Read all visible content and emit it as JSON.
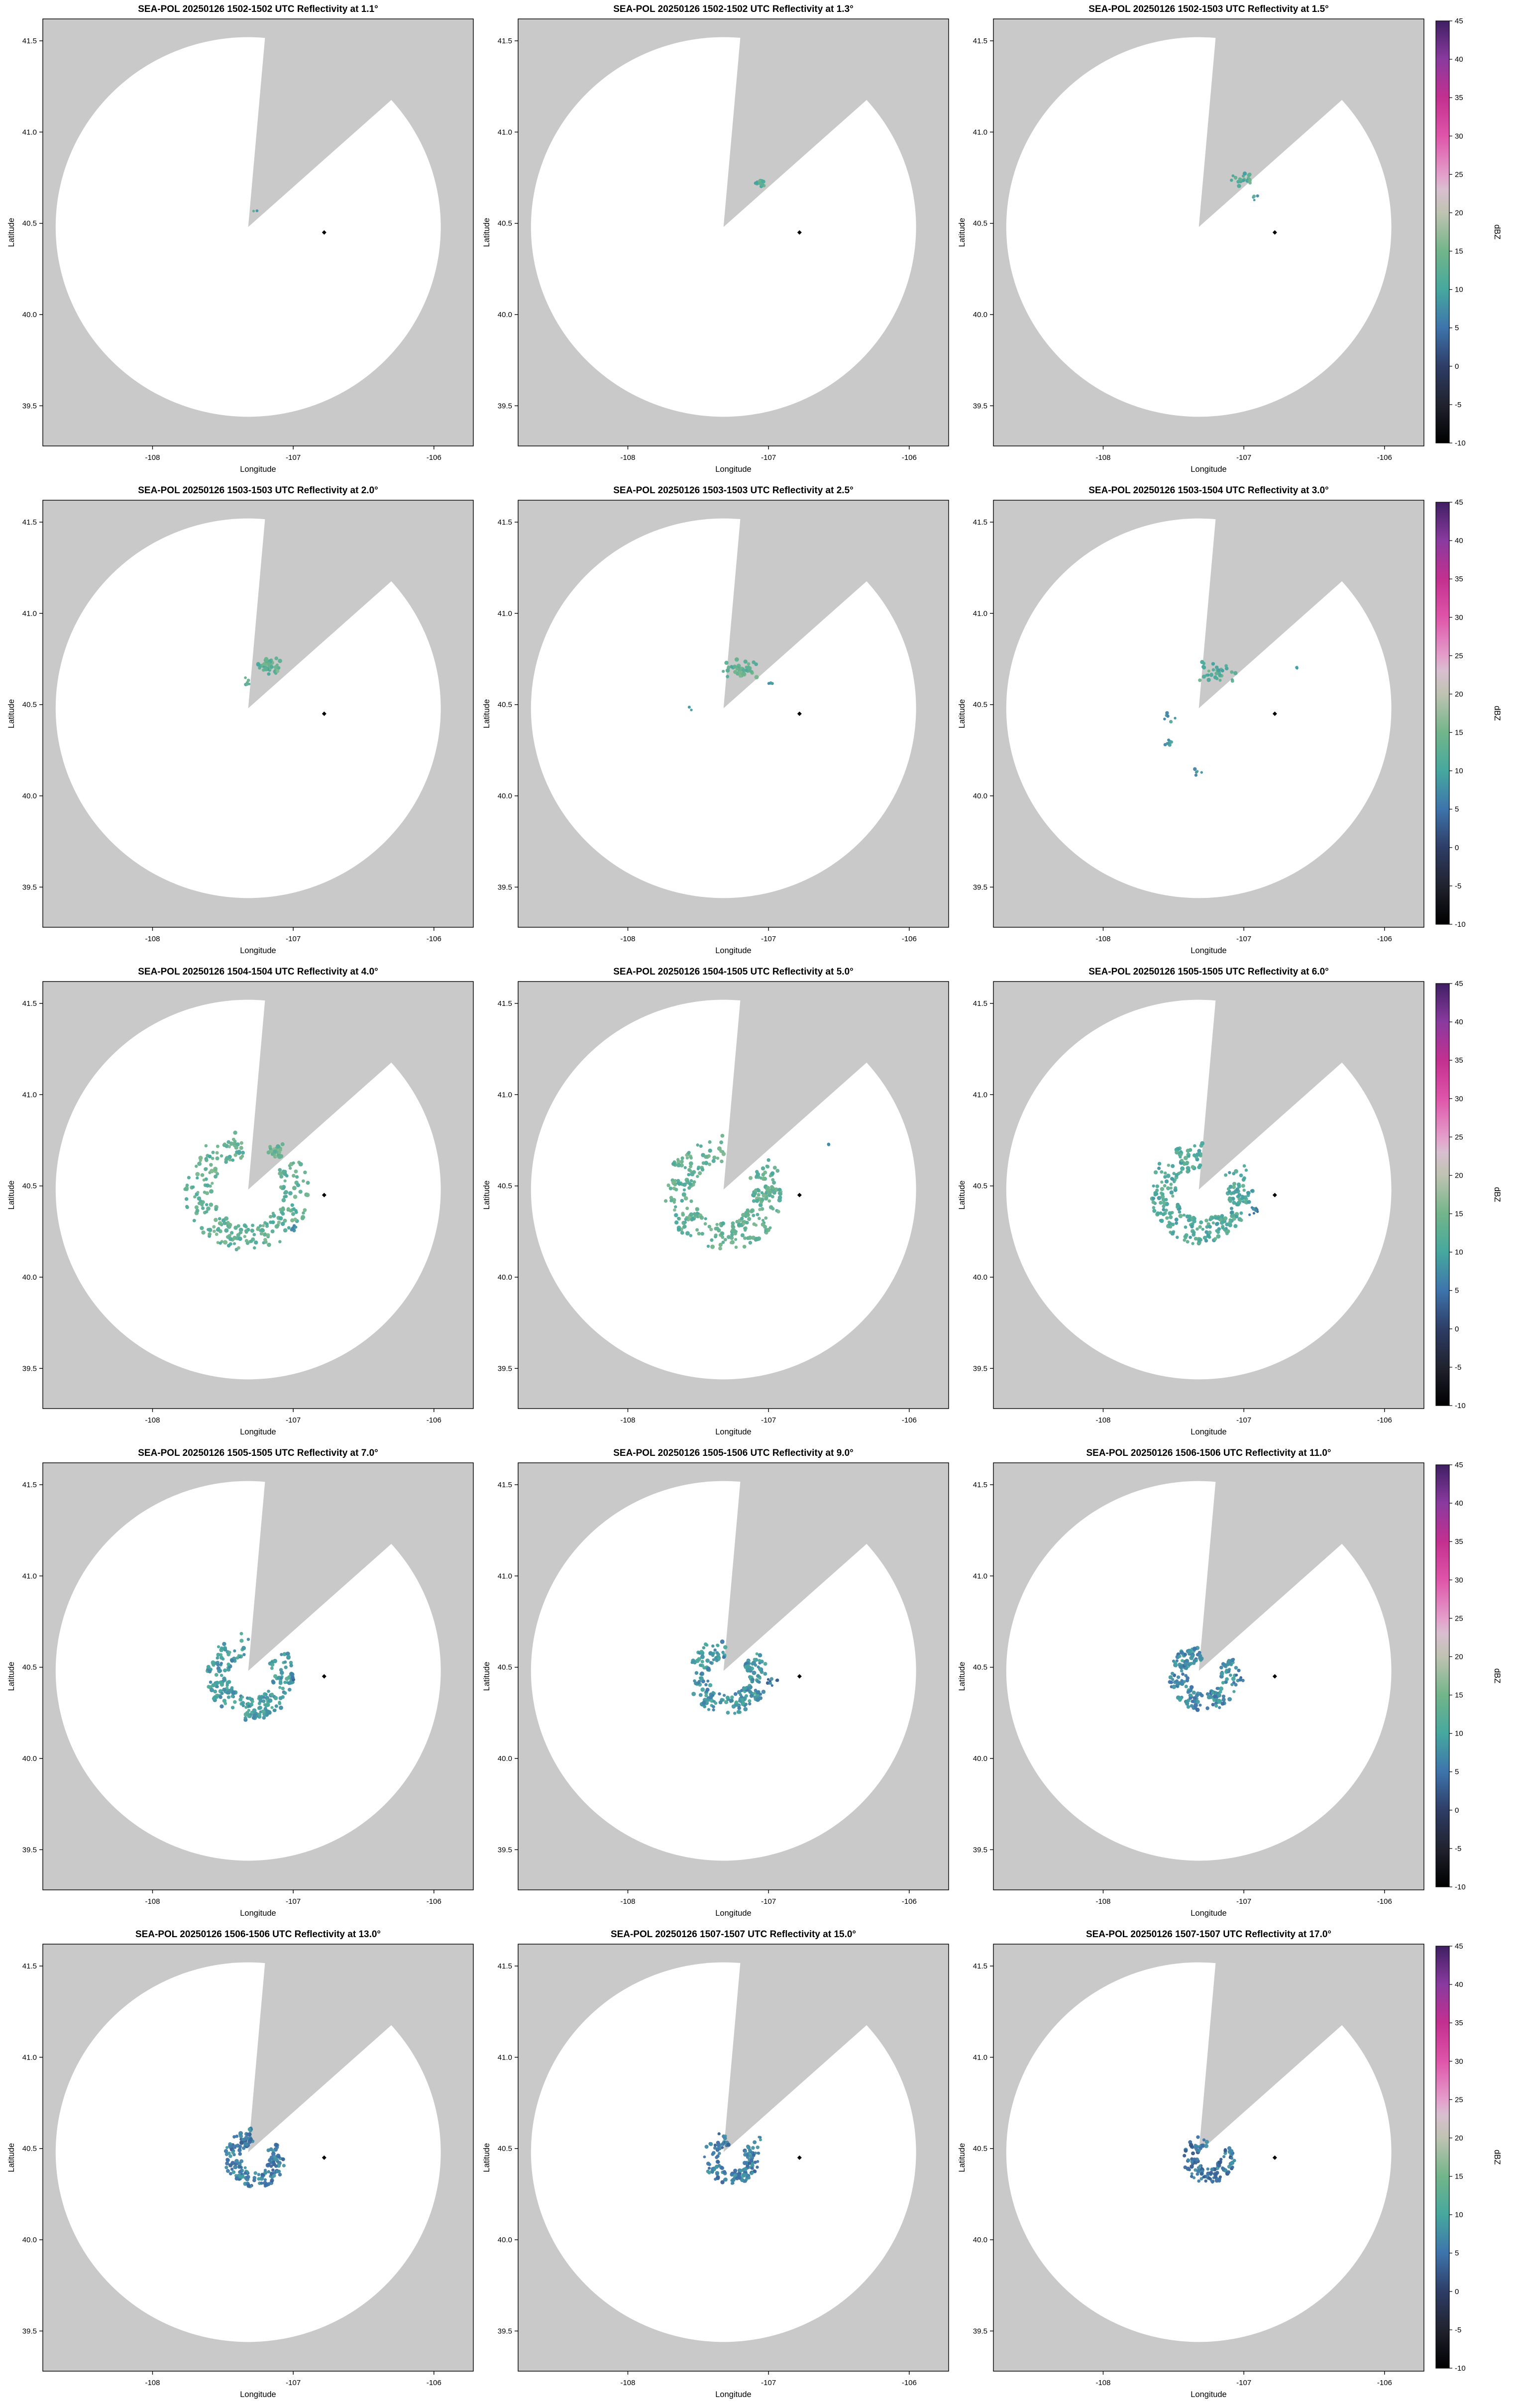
{
  "figure_name": "SEA-POL radar reflectivity multi-elevation PPI grid",
  "colors": {
    "page_background": "#ffffff",
    "map_outside": "#c9c9c9",
    "range_inside": "#ffffff",
    "axis": "#000000",
    "site_marker": "#000000"
  },
  "axes": {
    "xlabel": "Longitude",
    "ylabel": "Latitude",
    "xlim": [
      -108.78,
      -105.72
    ],
    "ylim": [
      39.28,
      41.62
    ],
    "xticks": [
      {
        "v": -108,
        "label": "-108"
      },
      {
        "v": -107,
        "label": "-107"
      },
      {
        "v": -106,
        "label": "-106"
      }
    ],
    "yticks": [
      {
        "v": 39.5,
        "label": "39.5"
      },
      {
        "v": 40.0,
        "label": "40.0"
      },
      {
        "v": 40.5,
        "label": "40.5"
      },
      {
        "v": 41.0,
        "label": "41.0"
      },
      {
        "v": 41.5,
        "label": "41.5"
      }
    ]
  },
  "radar": {
    "center_lon": -107.32,
    "center_lat": 40.48,
    "range_radius_deg_lat": 1.04,
    "lon_stretch": 1.316,
    "blocked_sector_az_deg": [
      5,
      48
    ],
    "site_marker": {
      "lon": -106.78,
      "lat": 40.45
    }
  },
  "colorbar": {
    "label": "dBZ",
    "min": -10,
    "max": 45,
    "ticks": [
      45,
      40,
      35,
      30,
      25,
      20,
      15,
      10,
      5,
      0,
      -5,
      -10
    ],
    "stops": [
      {
        "v": -10,
        "c": "#000000"
      },
      {
        "v": -5,
        "c": "#20222e"
      },
      {
        "v": 0,
        "c": "#2e3d66"
      },
      {
        "v": 5,
        "c": "#3e74ac"
      },
      {
        "v": 10,
        "c": "#46a89e"
      },
      {
        "v": 15,
        "c": "#72b58a"
      },
      {
        "v": 20,
        "c": "#bfc3b2"
      },
      {
        "v": 23,
        "c": "#d9bfd0"
      },
      {
        "v": 25,
        "c": "#e49ecb"
      },
      {
        "v": 30,
        "c": "#df55a9"
      },
      {
        "v": 35,
        "c": "#c3308f"
      },
      {
        "v": 40,
        "c": "#8a3a9f"
      },
      {
        "v": 45,
        "c": "#3f1f63"
      }
    ]
  },
  "chart_data": [
    {
      "type": "scatter",
      "title": "SEA-POL 20250126 1502-1502 UTC Reflectivity at 1.1°",
      "date": "20250126",
      "time_utc": "1502-1502",
      "elevation_deg": 1.1,
      "echoes": [
        {
          "kind": "blob",
          "cx": -107.27,
          "cy": 40.56,
          "rx": 0.02,
          "ry": 0.015,
          "n": 2,
          "dbz": 11,
          "size": 3
        }
      ]
    },
    {
      "type": "scatter",
      "title": "SEA-POL 20250126 1502-1502 UTC Reflectivity at 1.3°",
      "date": "20250126",
      "time_utc": "1502-1502",
      "elevation_deg": 1.3,
      "echoes": [
        {
          "kind": "blob",
          "cx": -107.06,
          "cy": 40.72,
          "rx": 0.05,
          "ry": 0.025,
          "n": 12,
          "dbz": 12,
          "size": 3.5
        }
      ]
    },
    {
      "type": "scatter",
      "title": "SEA-POL 20250126 1502-1503 UTC Reflectivity at 1.5°",
      "date": "20250126",
      "time_utc": "1502-1503",
      "elevation_deg": 1.5,
      "echoes": [
        {
          "kind": "blob",
          "cx": -107.02,
          "cy": 40.74,
          "rx": 0.09,
          "ry": 0.04,
          "n": 22,
          "dbz": 12,
          "size": 3.5
        },
        {
          "kind": "blob",
          "cx": -106.93,
          "cy": 40.64,
          "rx": 0.03,
          "ry": 0.02,
          "n": 4,
          "dbz": 10,
          "size": 3
        }
      ]
    },
    {
      "type": "scatter",
      "title": "SEA-POL 20250126 1503-1503 UTC Reflectivity at 2.0°",
      "date": "20250126",
      "time_utc": "1503-1503",
      "elevation_deg": 2.0,
      "echoes": [
        {
          "kind": "blob",
          "cx": -107.17,
          "cy": 40.71,
          "rx": 0.11,
          "ry": 0.055,
          "n": 40,
          "dbz": 13,
          "size": 3.8
        },
        {
          "kind": "blob",
          "cx": -107.33,
          "cy": 40.63,
          "rx": 0.03,
          "ry": 0.03,
          "n": 6,
          "dbz": 12,
          "size": 3.2
        }
      ]
    },
    {
      "type": "scatter",
      "title": "SEA-POL 20250126 1503-1503 UTC Reflectivity at 2.5°",
      "date": "20250126",
      "time_utc": "1503-1503",
      "elevation_deg": 2.5,
      "echoes": [
        {
          "kind": "blob",
          "cx": -107.2,
          "cy": 40.69,
          "rx": 0.14,
          "ry": 0.06,
          "n": 45,
          "dbz": 13,
          "size": 3.8
        },
        {
          "kind": "blob",
          "cx": -107.56,
          "cy": 40.48,
          "rx": 0.015,
          "ry": 0.012,
          "n": 2,
          "dbz": 10,
          "size": 3
        },
        {
          "kind": "blob",
          "cx": -106.98,
          "cy": 40.62,
          "rx": 0.02,
          "ry": 0.015,
          "n": 3,
          "dbz": 10,
          "size": 3
        }
      ]
    },
    {
      "type": "scatter",
      "title": "SEA-POL 20250126 1503-1504 UTC Reflectivity at 3.0°",
      "date": "20250126",
      "time_utc": "1503-1504",
      "elevation_deg": 3.0,
      "echoes": [
        {
          "kind": "blob",
          "cx": -107.18,
          "cy": 40.68,
          "rx": 0.16,
          "ry": 0.07,
          "n": 35,
          "dbz": 12,
          "size": 3.6
        },
        {
          "kind": "blob",
          "cx": -107.52,
          "cy": 40.42,
          "rx": 0.05,
          "ry": 0.035,
          "n": 6,
          "dbz": 9,
          "size": 3.2
        },
        {
          "kind": "blob",
          "cx": -107.55,
          "cy": 40.28,
          "rx": 0.06,
          "ry": 0.04,
          "n": 7,
          "dbz": 9,
          "size": 3.2
        },
        {
          "kind": "blob",
          "cx": -107.33,
          "cy": 40.13,
          "rx": 0.05,
          "ry": 0.03,
          "n": 5,
          "dbz": 9,
          "size": 3.2
        },
        {
          "kind": "blob",
          "cx": -106.62,
          "cy": 40.7,
          "rx": 0.02,
          "ry": 0.015,
          "n": 2,
          "dbz": 9,
          "size": 3
        }
      ]
    },
    {
      "type": "scatter",
      "title": "SEA-POL 20250126 1504-1504 UTC Reflectivity at 4.0°",
      "date": "20250126",
      "time_utc": "1504-1504",
      "elevation_deg": 4.0,
      "echoes": [
        {
          "kind": "arc",
          "cx": -107.33,
          "cy": 40.47,
          "r": 0.26,
          "w": 0.15,
          "az0": 55,
          "az1": 355,
          "n": 260,
          "dbz": 13,
          "size": 3.8
        },
        {
          "kind": "blob",
          "cx": -107.12,
          "cy": 40.69,
          "rx": 0.06,
          "ry": 0.04,
          "n": 25,
          "dbz": 14,
          "size": 3.8
        },
        {
          "kind": "blob",
          "cx": -107.0,
          "cy": 40.27,
          "rx": 0.04,
          "ry": 0.03,
          "n": 5,
          "dbz": 9,
          "size": 3.2
        }
      ]
    },
    {
      "type": "scatter",
      "title": "SEA-POL 20250126 1504-1505 UTC Reflectivity at 5.0°",
      "date": "20250126",
      "time_utc": "1504-1505",
      "elevation_deg": 5.0,
      "echoes": [
        {
          "kind": "arc",
          "cx": -107.32,
          "cy": 40.46,
          "r": 0.24,
          "w": 0.16,
          "az0": 52,
          "az1": 360,
          "n": 300,
          "dbz": 13,
          "size": 3.8
        },
        {
          "kind": "blob",
          "cx": -106.58,
          "cy": 40.73,
          "rx": 0.02,
          "ry": 0.015,
          "n": 2,
          "dbz": 9,
          "size": 3
        }
      ]
    },
    {
      "type": "scatter",
      "title": "SEA-POL 20250126 1505-1505 UTC Reflectivity at 6.0°",
      "date": "20250126",
      "time_utc": "1505-1505",
      "elevation_deg": 6.0,
      "echoes": [
        {
          "kind": "arc",
          "cx": -107.3,
          "cy": 40.46,
          "r": 0.21,
          "w": 0.14,
          "az0": 50,
          "az1": 360,
          "n": 280,
          "dbz": 11,
          "size": 3.8
        },
        {
          "kind": "blob",
          "cx": -106.92,
          "cy": 40.36,
          "rx": 0.05,
          "ry": 0.03,
          "n": 8,
          "dbz": 6,
          "size": 3.2
        }
      ]
    },
    {
      "type": "scatter",
      "title": "SEA-POL 20250126 1505-1505 UTC Reflectivity at 7.0°",
      "date": "20250126",
      "time_utc": "1505-1505",
      "elevation_deg": 7.0,
      "echoes": [
        {
          "kind": "arc",
          "cx": -107.3,
          "cy": 40.45,
          "r": 0.18,
          "w": 0.12,
          "az0": 52,
          "az1": 356,
          "n": 240,
          "dbz": 9,
          "size": 3.8
        },
        {
          "kind": "blob",
          "cx": -107.02,
          "cy": 40.42,
          "rx": 0.04,
          "ry": 0.03,
          "n": 6,
          "dbz": 6,
          "size": 3.2
        }
      ]
    },
    {
      "type": "scatter",
      "title": "SEA-POL 20250126 1505-1506 UTC Reflectivity at 9.0°",
      "date": "20250126",
      "time_utc": "1505-1506",
      "elevation_deg": 9.0,
      "echoes": [
        {
          "kind": "arc",
          "cx": -107.29,
          "cy": 40.45,
          "r": 0.16,
          "w": 0.11,
          "az0": 52,
          "az1": 355,
          "n": 220,
          "dbz": 8,
          "size": 3.8
        },
        {
          "kind": "blob",
          "cx": -106.97,
          "cy": 40.42,
          "rx": 0.06,
          "ry": 0.04,
          "n": 9,
          "dbz": 5,
          "size": 3.2
        }
      ]
    },
    {
      "type": "scatter",
      "title": "SEA-POL 20250126 1506-1506 UTC Reflectivity at 11.0°",
      "date": "20250126",
      "time_utc": "1506-1506",
      "elevation_deg": 11.0,
      "echoes": [
        {
          "kind": "arc",
          "cx": -107.28,
          "cy": 40.45,
          "r": 0.14,
          "w": 0.1,
          "az0": 54,
          "az1": 354,
          "n": 200,
          "dbz": 7,
          "size": 3.8
        },
        {
          "kind": "blob",
          "cx": -107.02,
          "cy": 40.45,
          "rx": 0.04,
          "ry": 0.03,
          "n": 5,
          "dbz": 5,
          "size": 3.2
        }
      ]
    },
    {
      "type": "scatter",
      "title": "SEA-POL 20250126 1506-1506 UTC Reflectivity at 13.0°",
      "date": "20250126",
      "time_utc": "1506-1506",
      "elevation_deg": 13.0,
      "echoes": [
        {
          "kind": "arc",
          "cx": -107.27,
          "cy": 40.45,
          "r": 0.12,
          "w": 0.09,
          "az0": 55,
          "az1": 352,
          "n": 170,
          "dbz": 6,
          "size": 3.8
        }
      ]
    },
    {
      "type": "scatter",
      "title": "SEA-POL 20250126 1507-1507 UTC Reflectivity at 15.0°",
      "date": "20250126",
      "time_utc": "1507-1507",
      "elevation_deg": 15.0,
      "echoes": [
        {
          "kind": "arc",
          "cx": -107.26,
          "cy": 40.45,
          "r": 0.11,
          "w": 0.08,
          "az0": 55,
          "az1": 352,
          "n": 150,
          "dbz": 6,
          "size": 3.6
        },
        {
          "kind": "blob",
          "cx": -107.06,
          "cy": 40.55,
          "rx": 0.02,
          "ry": 0.02,
          "n": 3,
          "dbz": 6,
          "size": 3
        }
      ]
    },
    {
      "type": "scatter",
      "title": "SEA-POL 20250126 1507-1507 UTC Reflectivity at 17.0°",
      "date": "20250126",
      "time_utc": "1507-1507",
      "elevation_deg": 17.0,
      "echoes": [
        {
          "kind": "arc",
          "cx": -107.25,
          "cy": 40.45,
          "r": 0.1,
          "w": 0.08,
          "az0": 56,
          "az1": 350,
          "n": 130,
          "dbz": 5,
          "size": 3.6
        }
      ]
    }
  ]
}
